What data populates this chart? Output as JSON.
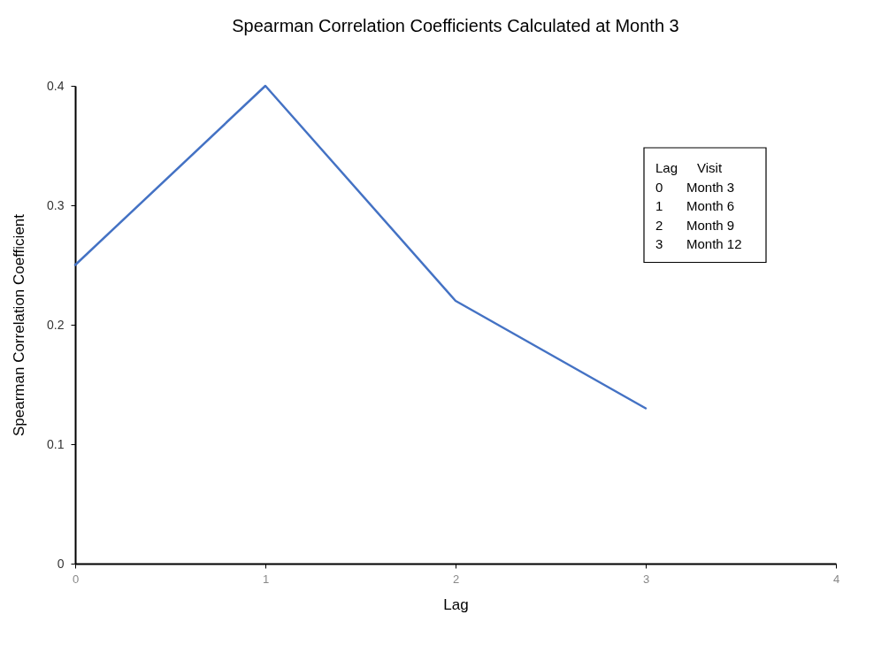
{
  "chart_data": {
    "type": "line",
    "title": "Spearman Correlation Coefficients Calculated at Month 3",
    "xlabel": "Lag",
    "ylabel": "Spearman Correlation Coefficient",
    "x": [
      0,
      1,
      2,
      3
    ],
    "series": [
      {
        "color": "#4472c4",
        "values": [
          0.25,
          0.4,
          0.22,
          0.13
        ]
      }
    ],
    "xlim": [
      0,
      4
    ],
    "xticks": [
      0,
      1,
      2,
      3,
      4
    ],
    "ylim": [
      0,
      0.4
    ],
    "yticks": [
      0,
      0.1,
      0.2,
      0.3,
      0.4
    ],
    "annotations": [
      "Lag",
      "Visit",
      "0",
      "Month 3",
      "1",
      "Month 6",
      "2",
      "Month 9",
      "3",
      "Month 12"
    ]
  }
}
